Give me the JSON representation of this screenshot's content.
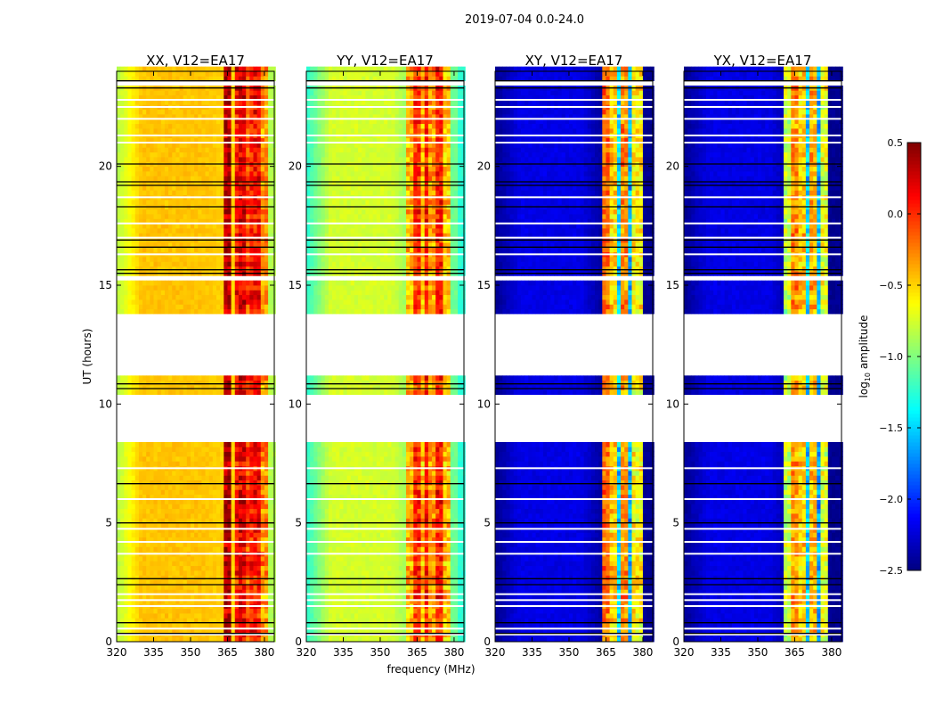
{
  "chart_data": {
    "type": "heatmap",
    "suptitle": "2019-07-04 0.0-24.0",
    "xlabel": "frequency (MHz)",
    "ylabel": "UT (hours)",
    "xlim": [
      320,
      384
    ],
    "ylim": [
      0,
      24
    ],
    "xticks": [
      320,
      335,
      350,
      365,
      380
    ],
    "yticks": [
      0,
      5,
      10,
      15,
      20
    ],
    "colorbar": {
      "label_prefix": "log",
      "label_sub": "10",
      "label_suffix": " amplitude",
      "range": [
        -2.5,
        0.5
      ],
      "ticks": [
        "0.5",
        "0.0",
        "−0.5",
        "−1.0",
        "−1.5",
        "−2.0",
        "−2.5"
      ],
      "tick_values": [
        0.5,
        0.0,
        -0.5,
        -1.0,
        -1.5,
        -2.0,
        -2.5
      ],
      "colormap": "jet"
    },
    "flagged_hour_ranges": [
      [
        8.5,
        10.4
      ],
      [
        11.1,
        13.8
      ],
      [
        15.1,
        15.4
      ],
      [
        23.35,
        23.55
      ]
    ],
    "flagged_hours": [
      0.3,
      0.55,
      1.5,
      1.75,
      2.0,
      3.7,
      4.2,
      4.75,
      6.0,
      7.3,
      16.3,
      17.0,
      17.6,
      18.7,
      21.0,
      21.3,
      22.0,
      22.5,
      22.8
    ],
    "line_hours": [
      0.35,
      0.8,
      2.4,
      2.65,
      5.0,
      6.65,
      10.65,
      10.85,
      15.5,
      15.65,
      16.6,
      16.9,
      18.3,
      19.2,
      19.35,
      20.1,
      23.3,
      23.6
    ],
    "panels": [
      {
        "title": "XX, V12=EA17",
        "base_edge": -0.85,
        "base_mid": -0.45,
        "base_low": -0.5,
        "rfi": [
          [
            363,
            367,
            0.35
          ],
          [
            367.5,
            369.5,
            0.1
          ],
          [
            369.5,
            372,
            0.2
          ],
          [
            372.5,
            374,
            -0.1
          ],
          [
            374,
            375,
            0.05
          ],
          [
            375.5,
            378.5,
            0.1
          ],
          [
            378.5,
            381,
            -0.3
          ]
        ]
      },
      {
        "title": "YY, V12=EA17",
        "base_edge": -1.25,
        "base_mid": -0.75,
        "base_low": -1.05,
        "rfi": [
          [
            360.5,
            363,
            -0.4
          ],
          [
            363,
            366,
            0.0
          ],
          [
            366.5,
            368,
            -0.4
          ],
          [
            368,
            370,
            0.05
          ],
          [
            370,
            372.5,
            -0.3
          ],
          [
            372.5,
            375,
            0.05
          ],
          [
            375,
            379,
            -0.45
          ]
        ]
      },
      {
        "title": "XY, V12=EA17",
        "base_edge": -2.45,
        "base_mid": -2.2,
        "base_low": -2.45,
        "rfi": [
          [
            363,
            366,
            -0.2
          ],
          [
            366,
            367,
            -1.5
          ],
          [
            367,
            370,
            -0.5
          ],
          [
            370,
            371,
            -1.5
          ],
          [
            371,
            374.5,
            -0.3
          ],
          [
            374.5,
            375.5,
            -1.6
          ],
          [
            375.5,
            379.5,
            -0.6
          ]
        ]
      },
      {
        "title": "YX, V12=EA17",
        "base_edge": -2.45,
        "base_mid": -2.2,
        "base_low": -2.45,
        "rfi": [
          [
            360.5,
            363,
            -0.8
          ],
          [
            363,
            366,
            -0.3
          ],
          [
            366,
            367,
            -1.5
          ],
          [
            367,
            370,
            -0.5
          ],
          [
            370,
            371,
            -1.5
          ],
          [
            371,
            374.5,
            -0.4
          ],
          [
            374.5,
            375.5,
            -1.6
          ],
          [
            375.5,
            379,
            -0.7
          ]
        ]
      }
    ]
  }
}
